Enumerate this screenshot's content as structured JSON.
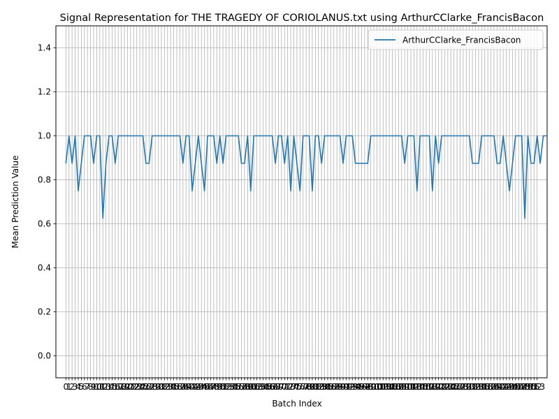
{
  "chart_data": {
    "type": "line",
    "title": "Signal Representation for THE TRAGEDY OF CORIOLANUS.txt using ArthurCClarke_FrancisBacon",
    "xlabel": "Batch Index",
    "ylabel": "Mean Prediction Value",
    "xlim": [
      -3.25,
      156.25
    ],
    "ylim": [
      -0.1,
      1.5
    ],
    "x_tick_start": 0,
    "x_tick_end": 153,
    "y_ticks": [
      0.0,
      0.2,
      0.4,
      0.6,
      0.8,
      1.0,
      1.2,
      1.4
    ],
    "y_tick_labels": [
      "0.0",
      "0.2",
      "0.4",
      "0.6",
      "0.8",
      "1.0",
      "1.2",
      "1.4"
    ],
    "grid": true,
    "legend_position": "top-right",
    "series": [
      {
        "name": "ArthurCClarke_FrancisBacon",
        "color": "#1f77b4",
        "values": [
          0.875,
          1.0,
          0.875,
          1.0,
          0.75,
          0.875,
          1.0,
          1.0,
          1.0,
          0.875,
          1.0,
          1.0,
          0.625,
          0.875,
          1.0,
          1.0,
          0.875,
          1.0,
          1.0,
          1.0,
          1.0,
          1.0,
          1.0,
          1.0,
          1.0,
          1.0,
          0.875,
          0.875,
          1.0,
          1.0,
          1.0,
          1.0,
          1.0,
          1.0,
          1.0,
          1.0,
          1.0,
          1.0,
          0.875,
          1.0,
          1.0,
          0.75,
          0.875,
          1.0,
          0.875,
          0.75,
          1.0,
          1.0,
          1.0,
          0.875,
          1.0,
          0.875,
          1.0,
          1.0,
          1.0,
          1.0,
          1.0,
          0.875,
          0.875,
          1.0,
          0.75,
          1.0,
          1.0,
          1.0,
          1.0,
          1.0,
          1.0,
          1.0,
          0.875,
          1.0,
          1.0,
          0.875,
          1.0,
          0.75,
          1.0,
          0.875,
          0.75,
          1.0,
          1.0,
          1.0,
          0.75,
          1.0,
          1.0,
          0.875,
          1.0,
          1.0,
          1.0,
          1.0,
          1.0,
          1.0,
          0.875,
          1.0,
          1.0,
          1.0,
          0.875,
          0.875,
          0.875,
          0.875,
          0.875,
          1.0,
          1.0,
          1.0,
          1.0,
          1.0,
          1.0,
          1.0,
          1.0,
          1.0,
          1.0,
          1.0,
          0.875,
          1.0,
          1.0,
          1.0,
          0.75,
          1.0,
          1.0,
          1.0,
          1.0,
          0.75,
          1.0,
          0.875,
          1.0,
          1.0,
          1.0,
          1.0,
          1.0,
          1.0,
          1.0,
          1.0,
          1.0,
          1.0,
          0.875,
          0.875,
          0.875,
          1.0,
          1.0,
          1.0,
          1.0,
          1.0,
          0.875,
          0.875,
          1.0,
          0.875,
          0.75,
          0.875,
          1.0,
          1.0,
          1.0,
          0.625,
          1.0,
          0.875,
          0.875,
          1.0,
          0.875,
          1.0,
          1.0
        ]
      }
    ]
  }
}
